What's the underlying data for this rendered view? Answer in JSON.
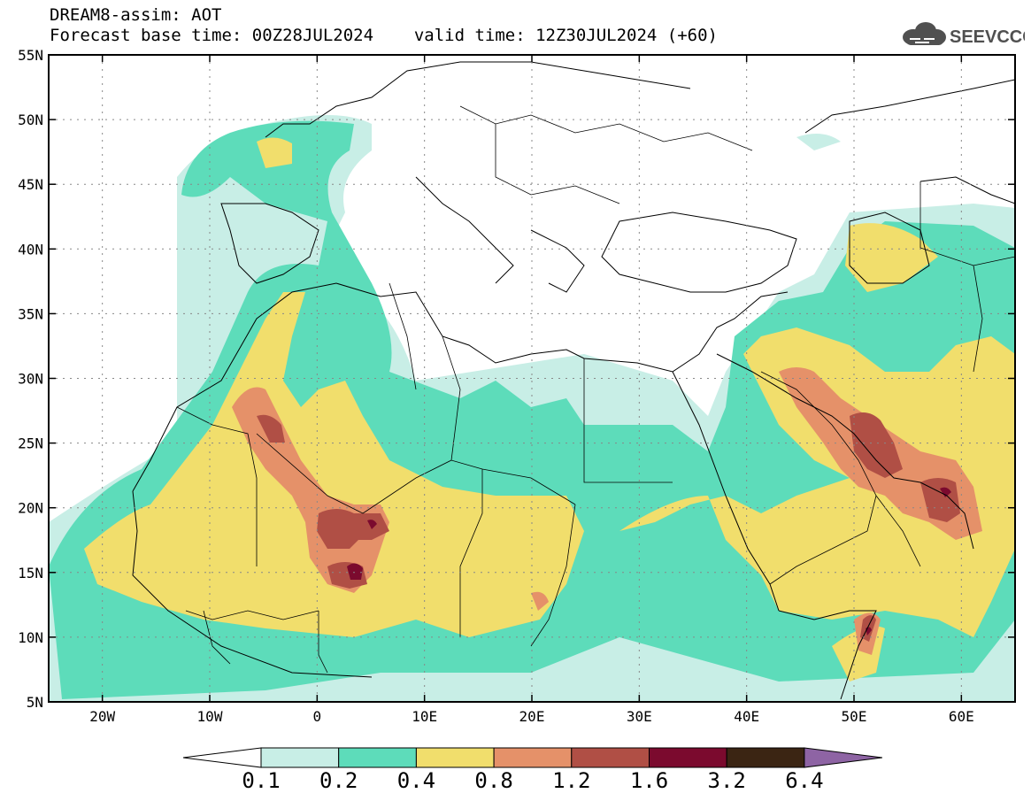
{
  "header": {
    "title": "DREAM8-assim: AOT",
    "base_time_label": "Forecast base time: 00Z28JUL2024",
    "valid_time_label": "valid time: 12Z30JUL2024 (+60)"
  },
  "logo": {
    "text": "SEEVCCC",
    "icon": "cloud-icon"
  },
  "axes": {
    "lat_labels": [
      "55N",
      "50N",
      "45N",
      "40N",
      "35N",
      "30N",
      "25N",
      "20N",
      "15N",
      "10N",
      "5N"
    ],
    "lon_labels": [
      "20W",
      "10W",
      "0",
      "10E",
      "20E",
      "30E",
      "40E",
      "50E",
      "60E"
    ]
  },
  "colors": {
    "c0": "#c8eee6",
    "c1": "#5ddcba",
    "c2": "#f1de6c",
    "c3": "#e59169",
    "c4": "#b04f45",
    "c5": "#7b0a2e",
    "c6": "#3b2513",
    "over": "#8e64a4",
    "under": "#ffffff"
  },
  "colorbar": {
    "labels": [
      "0.1",
      "0.2",
      "0.4",
      "0.8",
      "1.2",
      "1.6",
      "3.2",
      "6.4"
    ]
  }
}
